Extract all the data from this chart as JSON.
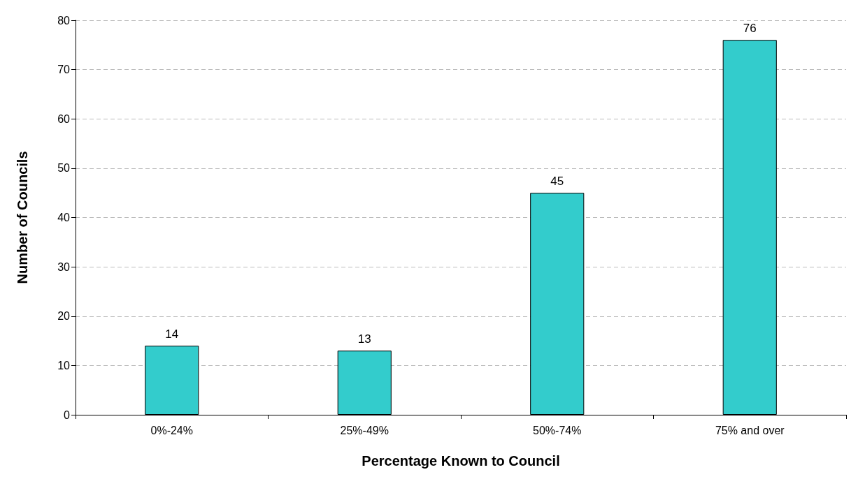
{
  "chart_data": {
    "type": "bar",
    "xlabel": "Percentage Known to Council",
    "ylabel": "Number of Councils",
    "categories": [
      "0%-24%",
      "25%-49%",
      "50%-74%",
      "75% and over"
    ],
    "values": [
      14,
      13,
      45,
      76
    ],
    "color": "#33cccc",
    "ylim": [
      0,
      80
    ],
    "yticks": [
      0,
      10,
      20,
      30,
      40,
      50,
      60,
      70,
      80
    ],
    "grid": "y",
    "data_labels": true
  }
}
